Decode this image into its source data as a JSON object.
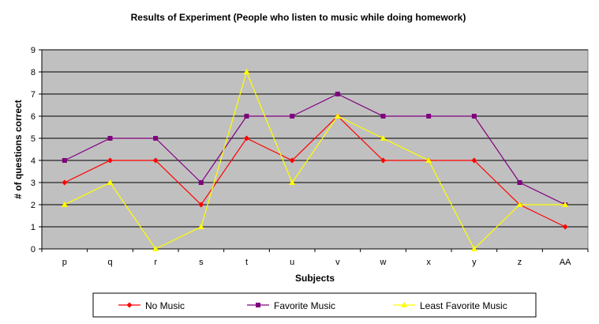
{
  "chart_data": {
    "type": "line",
    "title": "Results of Experiment (People who listen to music while doing homework)",
    "xlabel": "Subjects",
    "ylabel": "# of questions correct",
    "categories": [
      "p",
      "q",
      "r",
      "s",
      "t",
      "u",
      "v",
      "w",
      "x",
      "y",
      "z",
      "AA"
    ],
    "ylim": [
      0,
      9
    ],
    "yticks": [
      0,
      1,
      2,
      3,
      4,
      5,
      6,
      7,
      8,
      9
    ],
    "grid": true,
    "legend_position": "bottom",
    "plot_background": "#c0c0c0",
    "series": [
      {
        "name": "No Music",
        "color": "#ff0000",
        "marker": "diamond",
        "values": [
          3,
          4,
          4,
          2,
          5,
          4,
          6,
          4,
          4,
          4,
          2,
          1
        ]
      },
      {
        "name": "Favorite Music",
        "color": "#800080",
        "marker": "square",
        "values": [
          4,
          5,
          5,
          3,
          6,
          6,
          7,
          6,
          6,
          6,
          3,
          2
        ]
      },
      {
        "name": "Least Favorite Music",
        "color": "#ffff00",
        "marker": "triangle",
        "values": [
          2,
          3,
          0,
          1,
          8,
          3,
          6,
          5,
          4,
          0,
          2,
          2
        ]
      }
    ]
  }
}
